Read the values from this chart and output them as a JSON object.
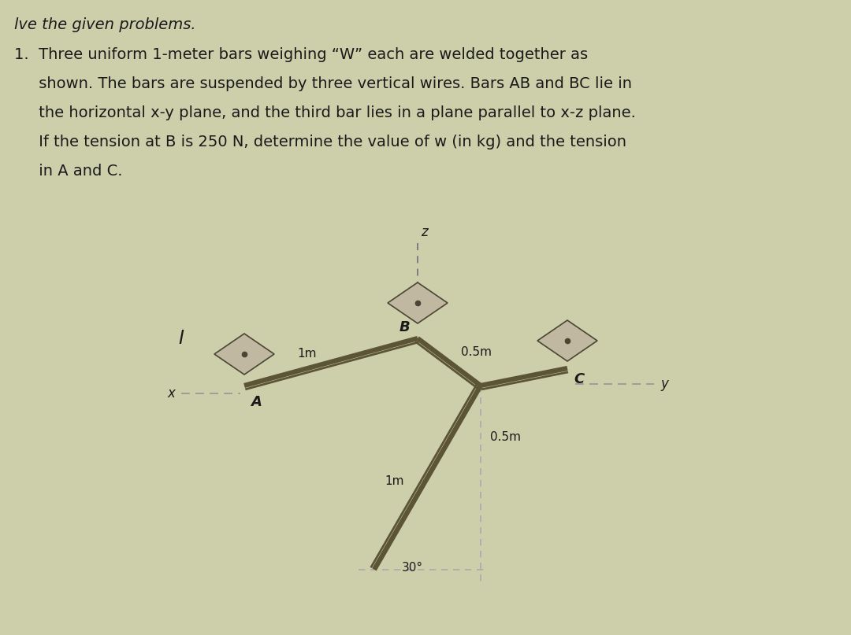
{
  "bg_color": "#cccfaa",
  "text_color": "#1a1a1a",
  "bar_color": "#5c5535",
  "bar_color_light": "#8a8060",
  "diamond_face": "#c0b8a0",
  "diamond_edge": "#4a4535",
  "dashed_color": "#aaaaaa",
  "title_line": "lve the given problems.",
  "problem_lines": [
    "1.  Three uniform 1-meter bars weighing “W” each are welded together as",
    "     shown. The bars are suspended by three vertical wires. Bars AB and BC lie in",
    "     the horizontal x-y plane, and the third bar lies in a plane parallel to x-z plane.",
    "     If the tension at B is 250 N, determine the value of w (in kg) and the tension",
    "     in A and C."
  ],
  "label_I": "I",
  "label_A": "A",
  "label_B": "B",
  "label_C": "C",
  "label_z": "z",
  "label_x": "x",
  "label_y": "y",
  "label_1m_AB": "1m",
  "label_05m_BC": "0.5m",
  "label_05m_vert": "0.5m",
  "label_1m_third": "1m",
  "label_30": "30°",
  "title_fontsize": 14,
  "text_fontsize": 14,
  "label_fontsize": 12,
  "dim_fontsize": 11
}
